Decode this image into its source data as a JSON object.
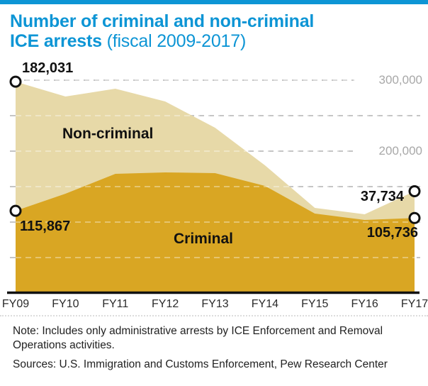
{
  "topbar": {
    "color": "#0d95d5"
  },
  "title": {
    "line1_bold": "Number of criminal and non-criminal",
    "line2_bold": "ICE arrests",
    "line2_regular": " (fiscal 2009-2017)"
  },
  "chart_data": {
    "type": "area",
    "stacked": true,
    "grid": "dashed",
    "legend_position": "labels-inside-areas",
    "categories": [
      "FY09",
      "FY10",
      "FY11",
      "FY12",
      "FY13",
      "FY14",
      "FY15",
      "FY16",
      "FY17"
    ],
    "series": [
      {
        "name": "Criminal",
        "color": "#d9a623",
        "values": [
          115867,
          140000,
          168000,
          170000,
          169000,
          151000,
          112000,
          103000,
          105736
        ]
      },
      {
        "name": "Non-criminal",
        "color": "#e7d9a8",
        "values": [
          182031,
          137000,
          120000,
          100000,
          64000,
          29000,
          8000,
          8000,
          37734
        ]
      }
    ],
    "ylim": [
      0,
      310000
    ],
    "gridlines": [
      300000,
      250000,
      200000,
      150000,
      100000,
      50000
    ],
    "axis_labels": [
      {
        "value": 300000,
        "label": "300,000"
      },
      {
        "value": 200000,
        "label": "200,000"
      }
    ],
    "annotations": [
      {
        "text": "182,031",
        "series": "Non-criminal",
        "category": "FY09"
      },
      {
        "text": "115,867",
        "series": "Criminal",
        "category": "FY09"
      },
      {
        "text": "37,734",
        "series": "Non-criminal",
        "category": "FY17"
      },
      {
        "text": "105,736",
        "series": "Criminal",
        "category": "FY17"
      }
    ],
    "area_labels": [
      {
        "text": "Non-criminal"
      },
      {
        "text": "Criminal"
      }
    ]
  },
  "note": "Note: Includes only administrative arrests by ICE Enforcement and Removal Operations activities.",
  "sources": "Sources: U.S. Immigration and Customs Enforcement, Pew Research Center",
  "colors": {
    "accent_blue": "#0d95d5",
    "criminal_gold": "#d9a623",
    "non_criminal_tan": "#e7d9a8",
    "axis_label_gray": "#a8a8a8",
    "axis_line": "#111111"
  }
}
